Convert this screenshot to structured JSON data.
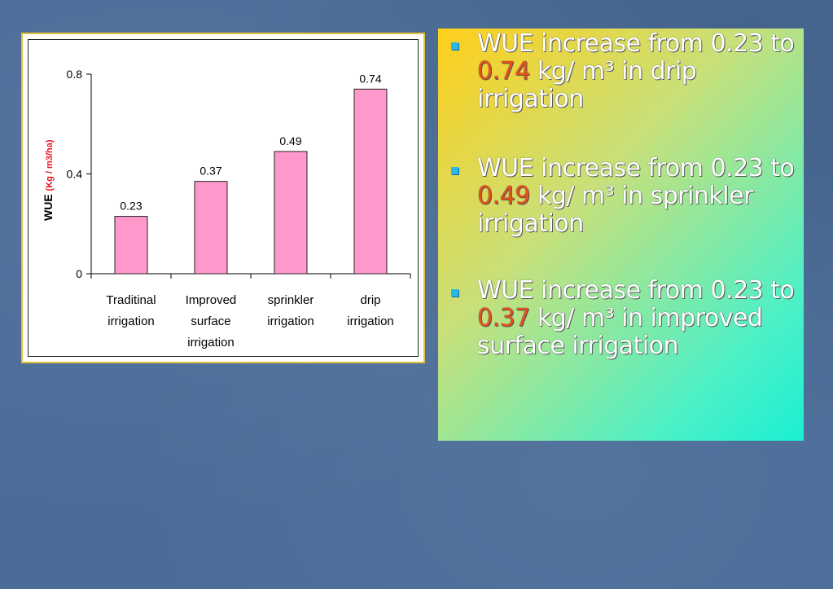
{
  "chart_data": {
    "type": "bar",
    "categories": [
      [
        "Traditinal",
        "irrigation"
      ],
      [
        "Improved",
        "surface",
        "irrigation"
      ],
      [
        "sprinkler",
        "irrigation"
      ],
      [
        "drip",
        "irrigation"
      ]
    ],
    "values": [
      0.23,
      0.37,
      0.49,
      0.74
    ],
    "data_labels": [
      "0.23",
      "0.37",
      "0.49",
      "0.74"
    ],
    "ylabel": "WUE",
    "ylabel_unit": "(Kg / m3/ha)",
    "ylim": [
      0,
      0.8
    ],
    "yticks": [
      0,
      0.4,
      0.8
    ],
    "ytick_labels": [
      "0",
      "0.4",
      "0.8"
    ],
    "bar_color": "#ff99cc",
    "bar_stroke": "#222222",
    "unit_color": "#e8151b",
    "grid": false
  },
  "bullets": [
    {
      "prefix": "WUE increase from 0.23 to ",
      "value": "0.74",
      "suffix": " kg/ m³ in drip irrigation"
    },
    {
      "prefix": "WUE increase from 0.23 to ",
      "value": "0.49",
      "suffix": " kg/ m³ in sprinkler irrigation"
    },
    {
      "prefix": "WUE increase from 0.23 to ",
      "value": "0.37",
      "suffix": " kg/ m³ in improved surface irrigation"
    }
  ],
  "colors": {
    "highlight": "#e8501a",
    "bullet_marker": "#29b6e8",
    "frame_border": "#e2c23a"
  }
}
